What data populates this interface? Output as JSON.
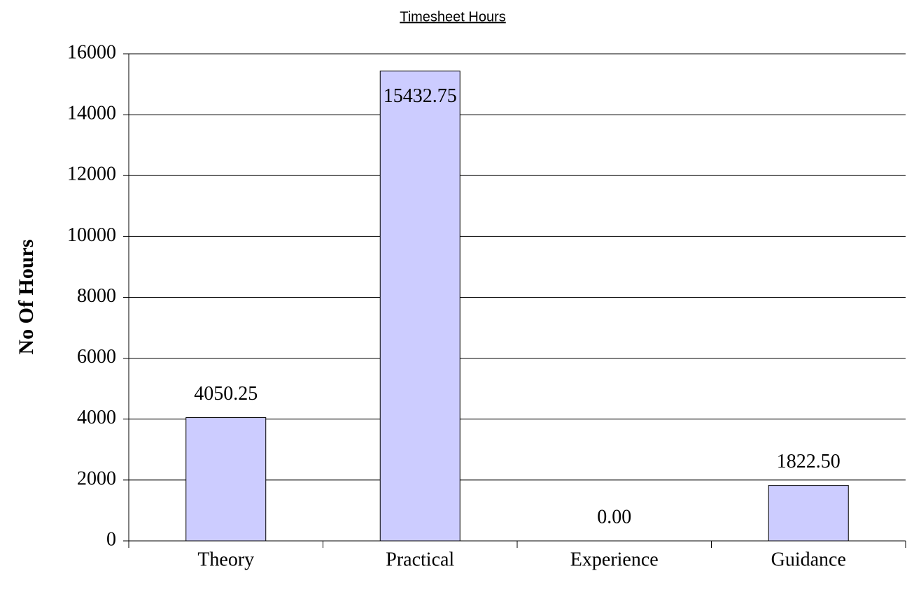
{
  "chart_data": {
    "type": "bar",
    "title": "Timesheet Hours",
    "y_label": "No Of Hours",
    "categories": [
      "Theory",
      "Practical",
      "Experience",
      "Guidance"
    ],
    "values": [
      4050.25,
      15432.75,
      0,
      1822.5
    ],
    "value_labels": [
      "4050.25",
      "15432.75",
      "0.00",
      "1822.50"
    ],
    "color": "#ccccff",
    "ylim": [
      0,
      16000
    ],
    "yticks": [
      0,
      2000,
      4000,
      6000,
      8000,
      10000,
      12000,
      14000,
      16000
    ],
    "grid": true
  }
}
